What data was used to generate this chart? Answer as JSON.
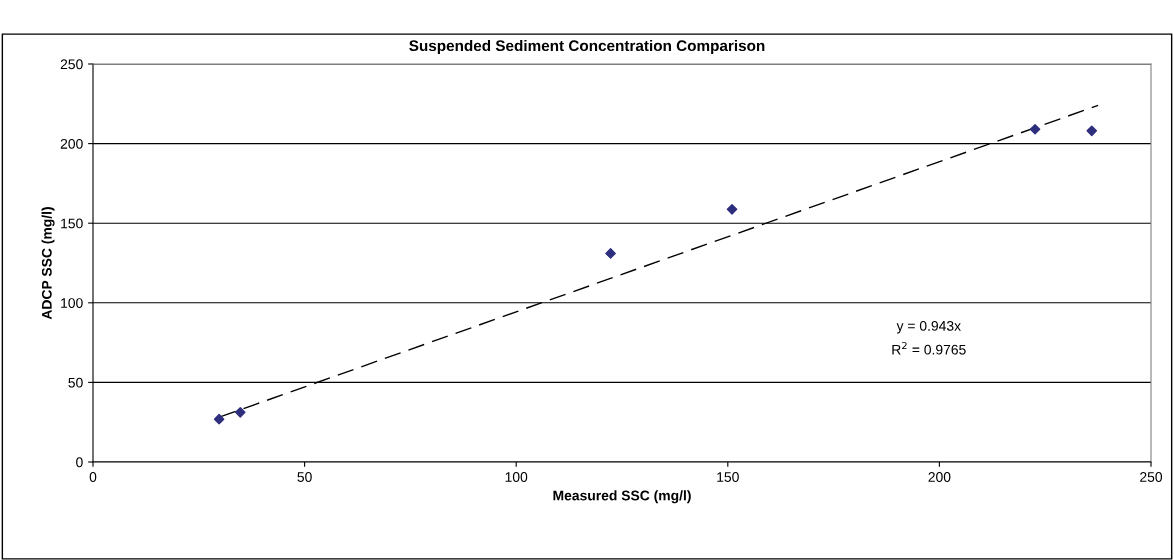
{
  "chart_data": {
    "type": "scatter",
    "title": "Suspended Sediment Concentration Comparison",
    "xlabel": "Measured SSC (mg/l)",
    "ylabel": "ADCP SSC (mg/l)",
    "series": [
      {
        "color": "#2e2e7e",
        "marker": "diamond",
        "x": [
          29.8,
          34.8,
          122.3,
          151,
          222.6,
          236
        ],
        "values": [
          26.9,
          31.2,
          131,
          158.7,
          209,
          208
        ]
      },
      {
        "type": "line",
        "color": "#000000",
        "line_style": "dashed",
        "marker": "none",
        "x": [
          30,
          237.5
        ],
        "values": [
          28.3,
          224
        ]
      }
    ],
    "annotations": [
      "y = 0.943x",
      "R$^{2}$ = 0.9765"
    ],
    "xlim": [
      0,
      250
    ],
    "xticks": [
      0,
      50,
      100,
      150,
      200,
      250
    ],
    "ylim": [
      0,
      250
    ],
    "yticks": [
      0,
      50,
      100,
      150,
      200,
      250
    ],
    "grid": "y",
    "legend": false
  }
}
